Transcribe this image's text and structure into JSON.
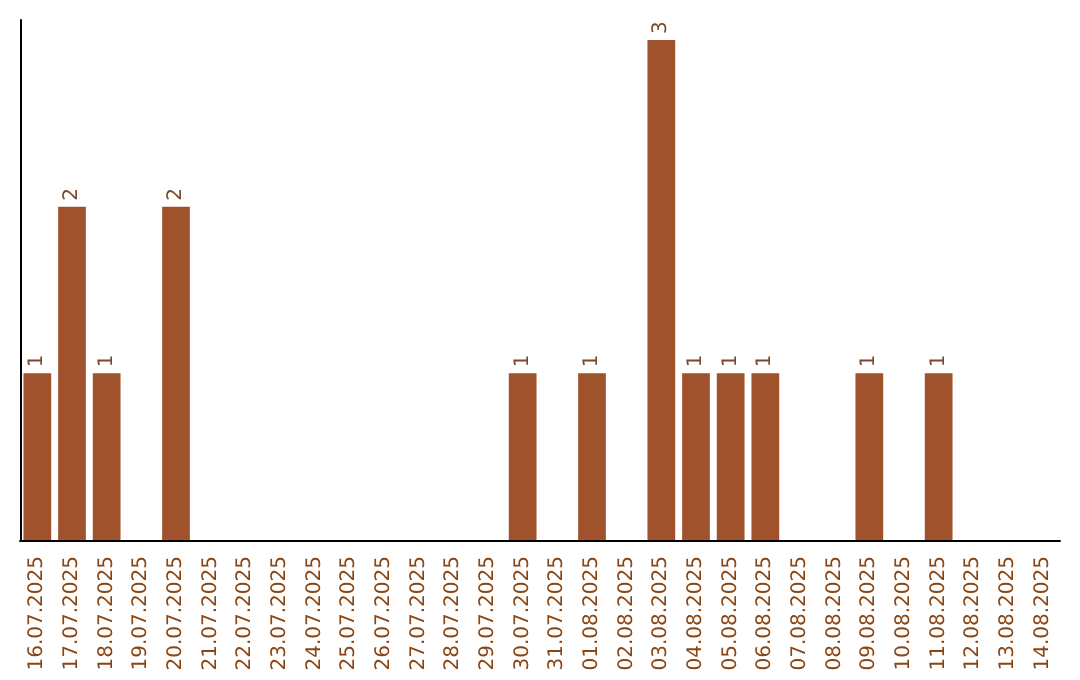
{
  "chart_data": {
    "type": "bar",
    "categories": [
      "16.07.2025",
      "17.07.2025",
      "18.07.2025",
      "19.07.2025",
      "20.07.2025",
      "21.07.2025",
      "22.07.2025",
      "23.07.2025",
      "24.07.2025",
      "25.07.2025",
      "26.07.2025",
      "27.07.2025",
      "28.07.2025",
      "29.07.2025",
      "30.07.2025",
      "31.07.2025",
      "01.08.2025",
      "02.08.2025",
      "03.08.2025",
      "04.08.2025",
      "05.08.2025",
      "06.08.2025",
      "07.08.2025",
      "08.08.2025",
      "09.08.2025",
      "10.08.2025",
      "11.08.2025",
      "12.08.2025",
      "13.08.2025",
      "14.08.2025"
    ],
    "values": [
      1,
      2,
      1,
      0,
      2,
      0,
      0,
      0,
      0,
      0,
      0,
      0,
      0,
      0,
      1,
      0,
      1,
      0,
      3,
      1,
      1,
      1,
      0,
      0,
      1,
      0,
      1,
      0,
      0,
      0
    ],
    "value_labels": [
      "1",
      "2",
      "1",
      null,
      "2",
      null,
      null,
      null,
      null,
      null,
      null,
      null,
      null,
      null,
      "1",
      null,
      "1",
      null,
      "3",
      "1",
      "1",
      "1",
      null,
      null,
      "1",
      null,
      "1",
      null,
      null,
      null
    ],
    "color": "#a0522d",
    "tick_labels": "x"
  }
}
